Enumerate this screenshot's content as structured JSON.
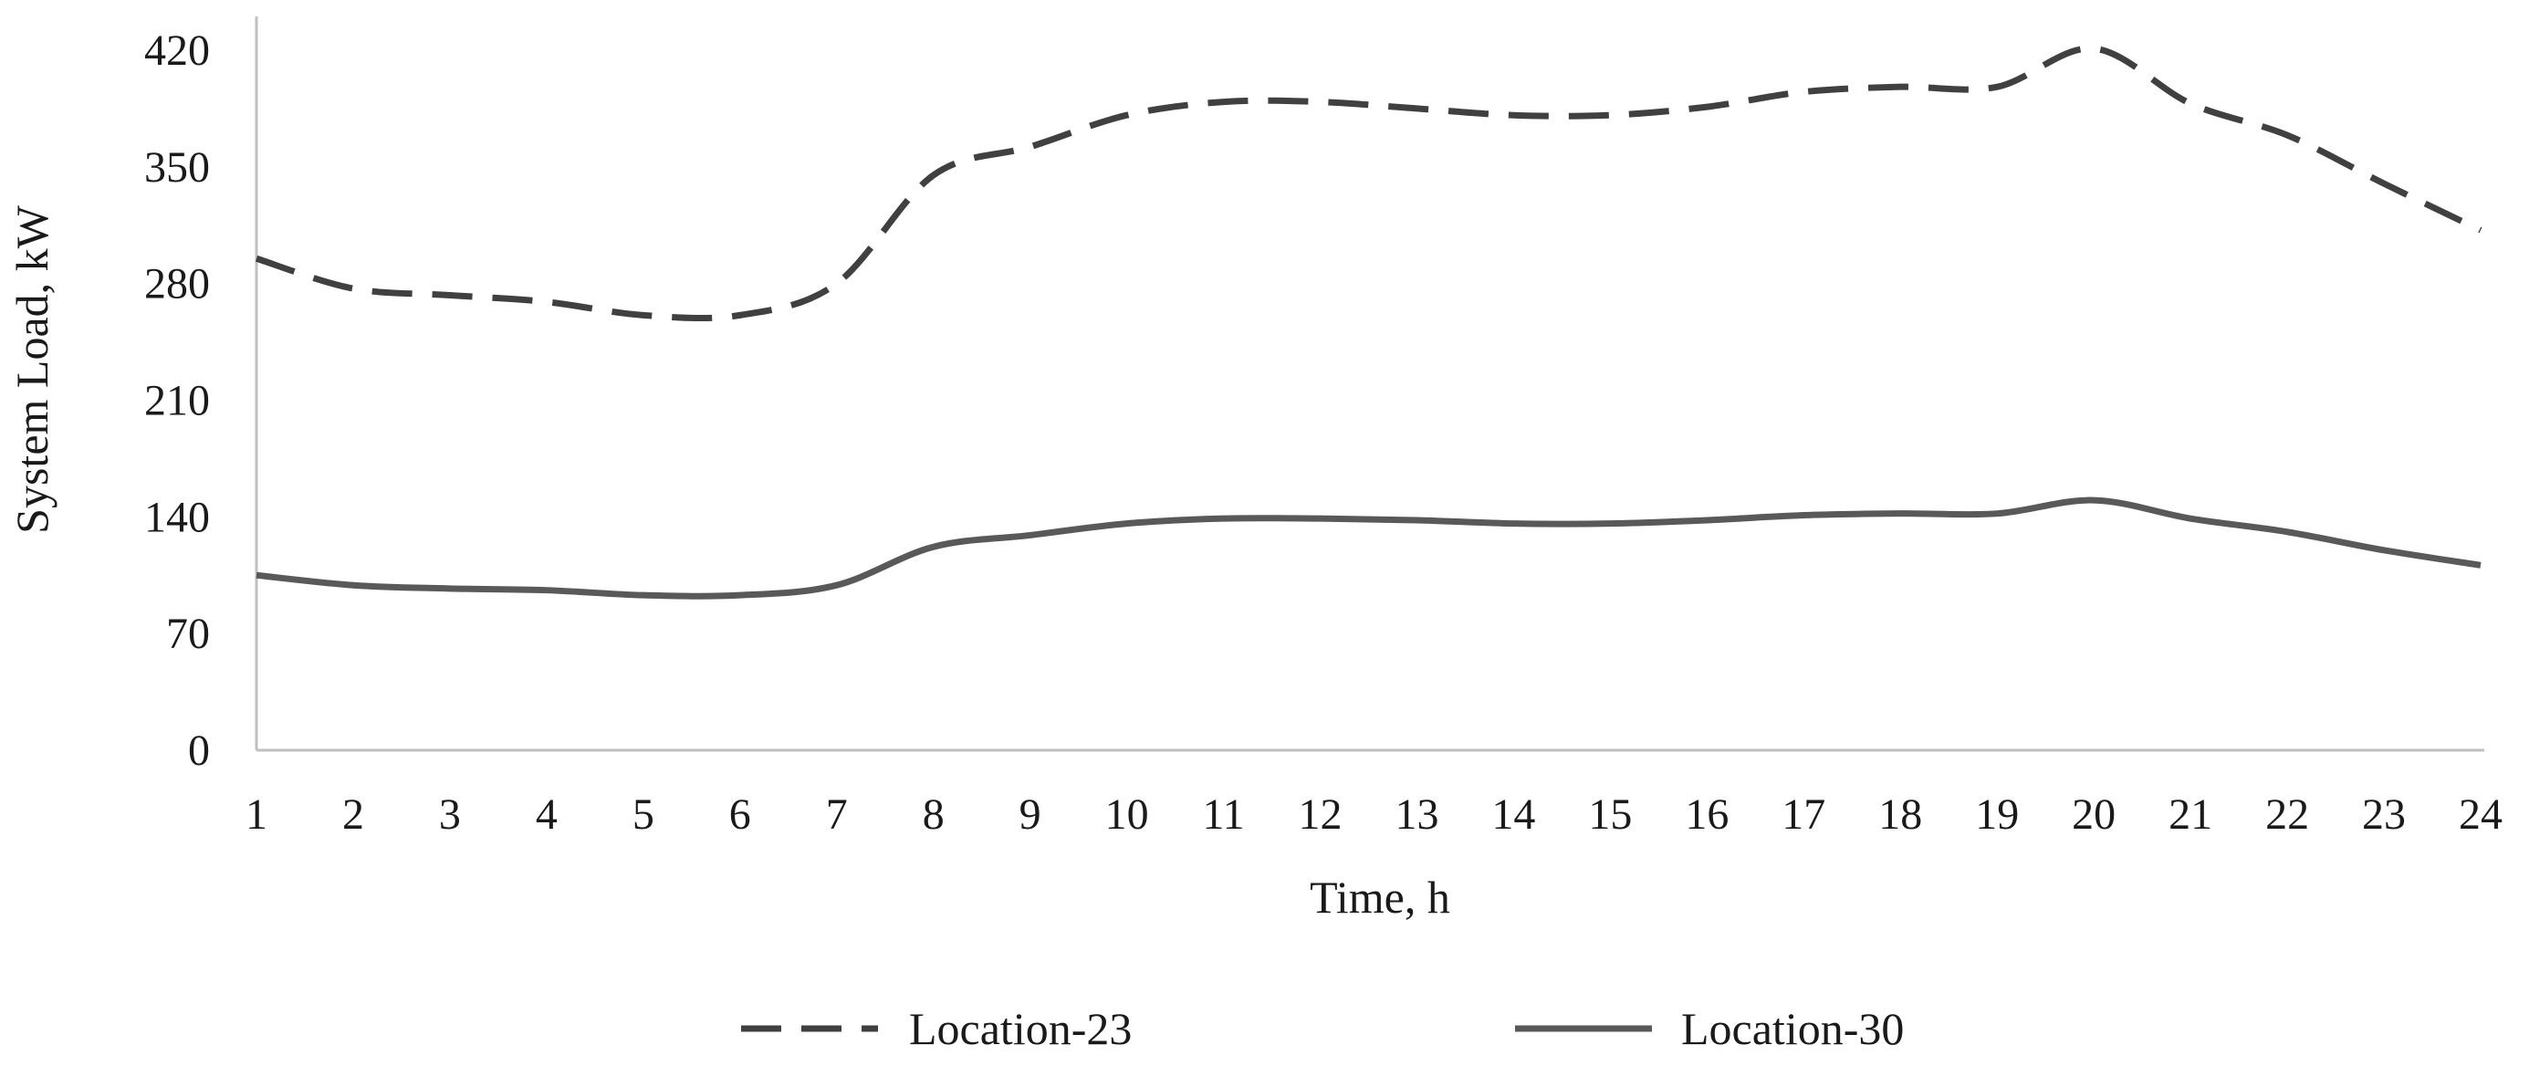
{
  "chart_data": {
    "type": "line",
    "title": "",
    "xlabel": "Time, h",
    "ylabel": "System Load, kW",
    "x": [
      1,
      2,
      3,
      4,
      5,
      6,
      7,
      8,
      9,
      10,
      11,
      12,
      13,
      14,
      15,
      16,
      17,
      18,
      19,
      20,
      21,
      22,
      23,
      24
    ],
    "ylim": [
      0,
      420
    ],
    "yticks": [
      0,
      70,
      140,
      210,
      280,
      350,
      420
    ],
    "grid": false,
    "legend_position": "bottom",
    "series": [
      {
        "name": "Location-23",
        "style": "dashed",
        "color": "#404040",
        "values": [
          295,
          277,
          273,
          269,
          261,
          261,
          280,
          345,
          362,
          381,
          389,
          389,
          385,
          381,
          381,
          386,
          395,
          398,
          398,
          421,
          388,
          369,
          340,
          312
        ]
      },
      {
        "name": "Location-30",
        "style": "solid",
        "color": "#595959",
        "values": [
          105,
          99,
          97,
          96,
          93,
          93,
          99,
          122,
          129,
          136,
          139,
          139,
          138,
          136,
          136,
          138,
          141,
          142,
          142,
          150,
          139,
          131,
          120,
          111
        ]
      }
    ]
  }
}
